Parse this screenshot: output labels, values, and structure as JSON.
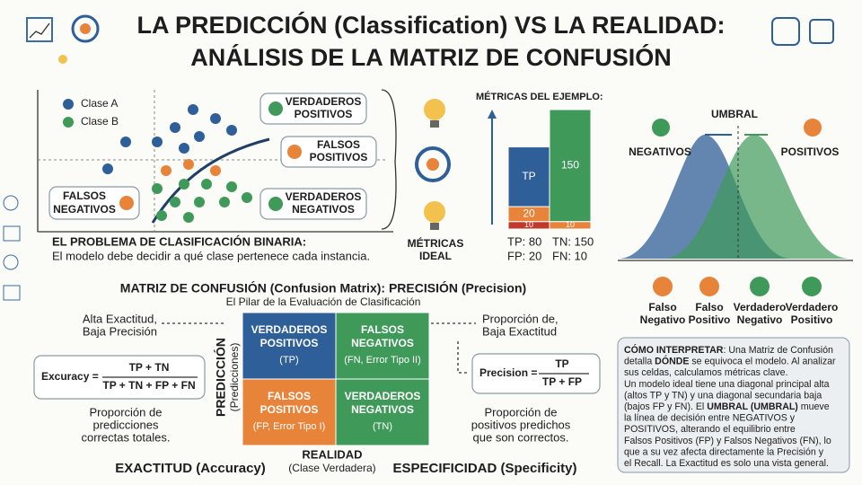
{
  "header": {
    "title_line1": "LA PREDICCIÓN (Classification) VS LA REALIDAD:",
    "title_line2": "ANÁLISIS DE LA MATRIZ DE CONFUSIÓN"
  },
  "scatter": {
    "legend": [
      "Clase A",
      "Clase B"
    ],
    "callouts": {
      "tp": [
        "VERDADEROS",
        "POSITIVOS"
      ],
      "fp": [
        "FALSOS",
        "POSITIVOS"
      ],
      "tn": [
        "VERDADEROS",
        "NEGATIVOS"
      ],
      "fn": [
        "FALSOS",
        "NEGATIVOS"
      ]
    },
    "caption_title": "EL PROBLEMA DE CLASIFICACIÓN BINARIA:",
    "caption_text": "El modelo debe decidir a qué clase pertenece cada instancia."
  },
  "ideal": [
    "MÉTRICAS",
    "IDEAL"
  ],
  "metrics": {
    "title": "MÉTRICAS DEL EJEMPLO:",
    "left": [
      {
        "value": 10,
        "color": "#c0392b"
      },
      {
        "value": 20,
        "color": "#e8833a"
      },
      {
        "value": 80,
        "label": "TP",
        "color": "#2f5f98"
      }
    ],
    "right": [
      {
        "value": 10,
        "color": "#e8833a"
      },
      {
        "value": 150,
        "color": "#3f9a5a"
      }
    ],
    "summary": [
      "TP: 80",
      "TN: 150",
      "FP: 20",
      "FN: 10"
    ]
  },
  "threshold": {
    "title": "UMBRAL",
    "negatives": "NEGATIVOS",
    "positives": "POSITIVOS",
    "outcomes": [
      [
        "Falso",
        "Negativo"
      ],
      [
        "Falso",
        "Positivo"
      ],
      [
        "Verdadero",
        "Negativo"
      ],
      [
        "Verdadero",
        "Positivo"
      ]
    ]
  },
  "matrix": {
    "title": "MATRIZ DE CONFUSIÓN (Confusion Matrix): PRECISIÓN (Precision)",
    "subtitle": "El Pilar de la Evaluación de Clasificación",
    "cells": [
      {
        "title": [
          "VERDADEROS",
          "POSITIVOS"
        ],
        "sub": "(TP)"
      },
      {
        "title": [
          "FALSOS",
          "NEGATIVOS"
        ],
        "sub": "(FN, Error Tipo II)"
      },
      {
        "title": [
          "FALSOS",
          "POSITIVOS"
        ],
        "sub": "(FP, Error Tipo I)"
      },
      {
        "title": [
          "VERDADEROS",
          "NEGATIVOS"
        ],
        "sub": "(TN)"
      }
    ],
    "row_axis": "PREDICCIÓN",
    "row_axis_sub": "(Predicciones)",
    "col_axis": "REALIDAD",
    "col_axis_sub": "(Clase Verdadera)"
  },
  "accuracy": {
    "note": [
      "Alta Exactitud,",
      "Baja Precisión"
    ],
    "lhs": "Excuracy =",
    "num": "TP + TN",
    "den": "TP + TN + FP + FN",
    "desc": [
      "Proporción de",
      "predicciones",
      "correctas totales."
    ],
    "label": "EXACTITUD (Accuracy)"
  },
  "precision": {
    "note": [
      "Proporción de,",
      "Baja Exactitud"
    ],
    "lhs": "Precision =",
    "num": "TP",
    "den": "TP + FP",
    "desc": [
      "Proporción de",
      "positivos predichos",
      "que son correctos."
    ],
    "label": "ESPECIFICIDAD (Specificity)"
  },
  "interpret": [
    [
      {
        "text": "CÓMO INTERPRETAR",
        "bold": true
      },
      {
        "text": ": Una Matriz de Confusión",
        "bold": false
      }
    ],
    [
      {
        "text": "detalla ",
        "bold": false
      },
      {
        "text": "DÓNDE",
        "bold": true
      },
      {
        "text": " se equivoca el modelo. Al analizar",
        "bold": false
      }
    ],
    [
      {
        "text": "sus celdas, calculamos métricas clave.",
        "bold": false
      }
    ],
    [
      {
        "text": "Un modelo ideal tiene una diagonal principal alta",
        "bold": false
      }
    ],
    [
      {
        "text": "(altos TP y TN) y una diagonal secundaria baja",
        "bold": false
      }
    ],
    [
      {
        "text": "(bajos FP y FN). El ",
        "bold": false
      },
      {
        "text": "UMBRAL (UMBRAL)",
        "bold": true
      },
      {
        "text": " mueve",
        "bold": false
      }
    ],
    [
      {
        "text": "la línea de decisión entre NEGATIVOS y",
        "bold": false
      }
    ],
    [
      {
        "text": "POSITIVOS, alterando el equilibrio entre",
        "bold": false
      }
    ],
    [
      {
        "text": "Falsos Positivos (FP) y Falsos Negativos (FN), lo",
        "bold": false
      }
    ],
    [
      {
        "text": "que a su vez afecta directamente la Precisión y",
        "bold": false
      }
    ],
    [
      {
        "text": "el Recall. La Exactitud es solo una vista general.",
        "bold": false
      }
    ]
  ]
}
